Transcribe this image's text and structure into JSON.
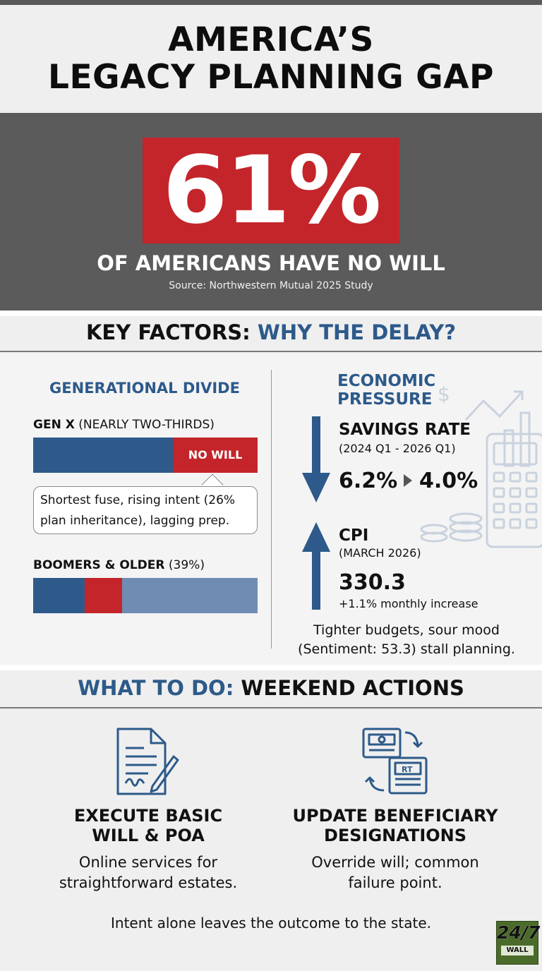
{
  "title_line1": "AMERICA’S",
  "title_line2": "LEGACY PLANNING GAP",
  "hero": {
    "stat": "61%",
    "subtitle": "OF AMERICANS HAVE NO WILL",
    "source": "Source: Northwestern Mutual 2025 Study"
  },
  "factors": {
    "heading_black": "KEY FACTORS:",
    "heading_blue": "WHY THE DELAY?"
  },
  "generational": {
    "title": "GENERATIONAL DIVIDE",
    "genx_label_bold": "GEN X",
    "genx_label_rest": " (NEARLY TWO-THIRDS)",
    "genx_no_will_label": "NO WILL",
    "callout_line1": "Shortest fuse, rising intent (26%",
    "callout_line2": "plan inheritance), lagging prep.",
    "boomers_label_bold": "BOOMERS & OLDER",
    "boomers_label_rest": " (39%)"
  },
  "economic": {
    "title_line1": "ECONOMIC",
    "title_line2": "PRESSURE",
    "savings_title": "SAVINGS RATE",
    "savings_period": "(2024 Q1 - 2026 Q1)",
    "savings_from": "6.2%",
    "savings_to": "4.0%",
    "cpi_title": "CPI",
    "cpi_period": "(MARCH 2026)",
    "cpi_value": "330.3",
    "cpi_change": "+1.1% monthly increase",
    "note_line1": "Tighter budgets, sour mood",
    "note_line2": "(Sentiment: 53.3) stall planning."
  },
  "actions": {
    "heading_blue": "WHAT TO DO:",
    "heading_black": "WEEKEND ACTIONS",
    "left_title_line1": "EXECUTE BASIC",
    "left_title_line2": "WILL & POA",
    "left_desc_line1": "Online services for",
    "left_desc_line2": "straightforward estates.",
    "right_title_line1": "UPDATE BENEFICIARY",
    "right_title_line2": "DESIGNATIONS",
    "right_desc_line1": "Override will; common",
    "right_desc_line2": "failure point.",
    "right_icon_text": "RT",
    "footer": "Intent alone leaves the outcome to the state."
  },
  "logo": {
    "top": "24/7",
    "bottom": "WALL"
  },
  "colors": {
    "blue": "#2d5a8a",
    "red": "#c4252a",
    "light_blue": "#6f8db3",
    "dark_gray": "#5b5b5b"
  }
}
